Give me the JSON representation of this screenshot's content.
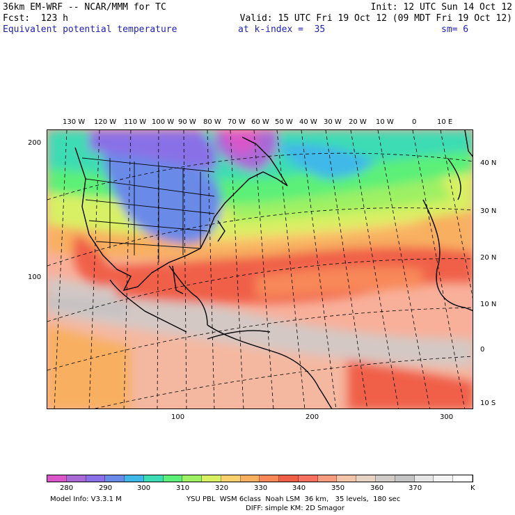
{
  "header": {
    "model": "36km EM-WRF -- NCAR/MMM for TC",
    "init": "Init: 12 UTC Sun 14 Oct 12",
    "forecast": "Fcst:  123 h",
    "valid": "Valid: 15 UTC Fri 19 Oct 12 (09 MDT Fri 19 Oct 12)",
    "field": "Equivalent potential temperature",
    "level": "at k-index =  35",
    "smoothing": "sm= 6"
  },
  "map": {
    "lon_labels": [
      "130 W",
      "120 W",
      "110 W",
      "100 W",
      "90 W",
      "80 W",
      "70 W",
      "60 W",
      "50 W",
      "40 W",
      "30 W",
      "20 W",
      "10 W",
      "0",
      "10 E"
    ],
    "lat_labels": [
      "40 N",
      "30 N",
      "20 N",
      "10 N",
      "0",
      "10 S"
    ],
    "left_axis": [
      "200",
      "100"
    ],
    "bottom_axis": [
      "100",
      "200",
      "300"
    ]
  },
  "colorbar": {
    "colors": [
      "#d957c9",
      "#a86bd6",
      "#8a6fe6",
      "#6a8ae8",
      "#3fb8e8",
      "#3cdcb4",
      "#5cf078",
      "#9ef064",
      "#d8f064",
      "#f8d070",
      "#f8b060",
      "#f88858",
      "#f06048",
      "#f87060",
      "#f89c80",
      "#f4c4a8",
      "#e8d4c4",
      "#d0ccc8",
      "#c4c4c4",
      "#e6e6e6",
      "#f4f4f4",
      "#ffffff"
    ],
    "labels": [
      "280",
      "290",
      "300",
      "310",
      "320",
      "330",
      "340",
      "350",
      "360",
      "370"
    ],
    "units": "K"
  },
  "footer": {
    "model_info": "Model Info: V3.3.1 M",
    "physics": "YSU PBL  WSM 6class  Noah LSM  36 km,   35 levels,  180 sec",
    "diffusion": "DIFF: simple KM: 2D Smagor"
  }
}
